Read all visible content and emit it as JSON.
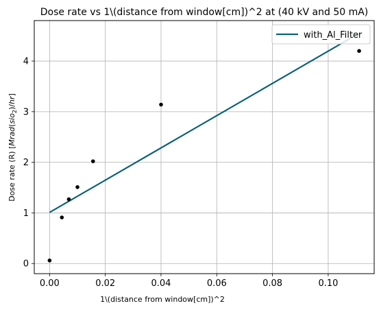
{
  "chart_data": {
    "type": "scatter",
    "title": "Dose rate vs 1\\(distance from window[cm])^2 at  (40 kV and 50 mA)",
    "xlabel": "1\\(distance from window[cm])^2",
    "ylabel": {
      "prefix": "Dose rate (R) [",
      "var": "Mrad",
      "paren_open": "(",
      "sub_base": "sio",
      "sub": "2",
      "paren_close": ")",
      "slash": "/",
      "unit": "hr",
      "suffix": "]"
    },
    "xlim": [
      -0.0055,
      0.1165
    ],
    "ylim": [
      -0.2,
      4.8
    ],
    "xticks": [
      0.0,
      0.02,
      0.04,
      0.06,
      0.08,
      0.1
    ],
    "xtick_labels": [
      "0.00",
      "0.02",
      "0.04",
      "0.06",
      "0.08",
      "0.10"
    ],
    "yticks": [
      0,
      1,
      2,
      3,
      4
    ],
    "ytick_labels": [
      "0",
      "1",
      "2",
      "3",
      "4"
    ],
    "grid": true,
    "legend_position": "top-right",
    "points": {
      "x": [
        0.0,
        0.0044,
        0.0069,
        0.01,
        0.0156,
        0.04,
        0.1111
      ],
      "y": [
        0.06,
        0.91,
        1.27,
        1.51,
        2.02,
        3.14,
        4.2
      ],
      "color": "#000000"
    },
    "series": [
      {
        "name": "with_Al_Filter",
        "type": "line",
        "x": [
          0.0,
          0.1111
        ],
        "y": [
          1.01,
          4.55
        ],
        "color": "#0a6178"
      }
    ]
  }
}
